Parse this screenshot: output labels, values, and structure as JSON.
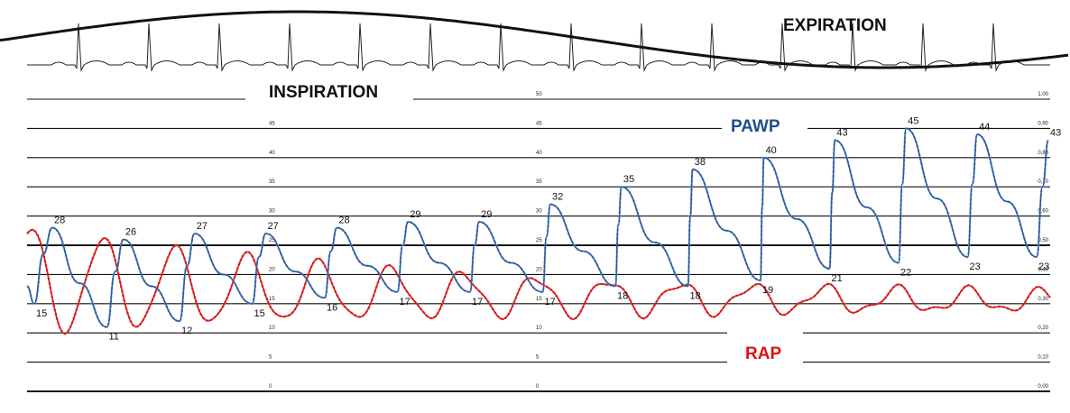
{
  "chart_data": {
    "type": "line",
    "phase_labels": {
      "inspiration": "INSPIRATION",
      "expiration": "EXPIRATION"
    },
    "y_axis": {
      "ticks": [
        0,
        5,
        10,
        15,
        20,
        25,
        30,
        35,
        40,
        45,
        50
      ],
      "tick_labels": [
        "0",
        "5",
        "10",
        "15",
        "20",
        "25",
        "30",
        "35",
        "40",
        "45",
        "50"
      ],
      "ylim": [
        0,
        50
      ]
    },
    "secondary_axis": {
      "tick_labels": [
        "0,00",
        "0,10",
        "0,20",
        "0,30",
        "0,40",
        "0,50",
        "0,60",
        "0,70",
        "0,80",
        "0,90",
        "1,00"
      ]
    },
    "series": [
      {
        "name": "PAWP",
        "color": "#2e5b9a",
        "label_color": "#1f4e8c",
        "peaks": [
          28,
          26,
          27,
          27,
          28,
          29,
          29,
          32,
          35,
          38,
          40,
          43,
          45,
          44,
          43
        ],
        "troughs": [
          15,
          11,
          12,
          15,
          16,
          17,
          17,
          17,
          18,
          18,
          19,
          21,
          22,
          23,
          23
        ]
      },
      {
        "name": "RAP",
        "color": "#d42020",
        "label_color": "#e01010"
      }
    ]
  }
}
